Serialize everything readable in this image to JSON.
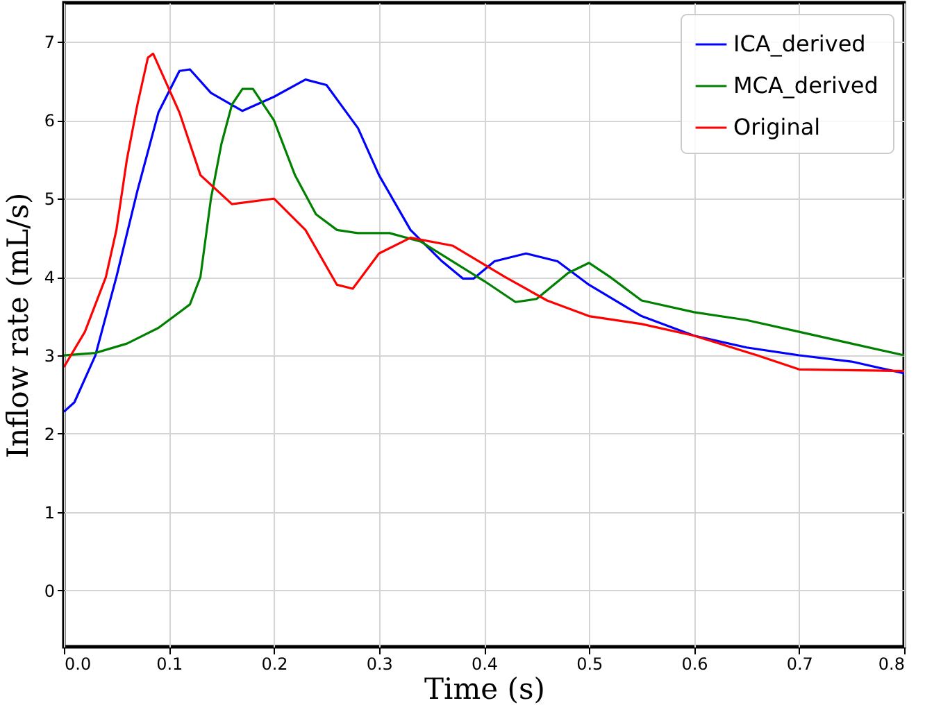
{
  "chart_data": {
    "type": "line",
    "xlabel": "Time (s)",
    "ylabel": "Inflow rate (mL/s)",
    "xlim": [
      0,
      0.8
    ],
    "xticks": [
      {
        "value": 0,
        "label": "0.0"
      },
      0.1,
      0.2,
      0.3,
      0.4,
      0.5,
      0.6,
      0.7,
      0.8
    ],
    "ylim": [
      -0.72,
      7.5
    ],
    "yticks": [
      0,
      1,
      2,
      3,
      4,
      5,
      6,
      7
    ],
    "grid": true,
    "legend": "top right",
    "line_style": "solid",
    "marker": "none",
    "series": [
      {
        "name": "ICA_derived",
        "color": "#0000ff",
        "x": [
          0,
          0.01,
          0.03,
          0.05,
          0.07,
          0.09,
          0.11,
          0.12,
          0.14,
          0.17,
          0.2,
          0.23,
          0.25,
          0.28,
          0.3,
          0.33,
          0.36,
          0.38,
          0.39,
          0.41,
          0.44,
          0.47,
          0.5,
          0.55,
          0.6,
          0.65,
          0.7,
          0.75,
          0.8
        ],
        "values": [
          2.28,
          2.4,
          3.0,
          4.0,
          5.1,
          6.1,
          6.63,
          6.65,
          6.35,
          6.12,
          6.3,
          6.52,
          6.45,
          5.9,
          5.3,
          4.6,
          4.2,
          3.98,
          3.98,
          4.2,
          4.3,
          4.2,
          3.9,
          3.5,
          3.25,
          3.1,
          3.0,
          2.92,
          2.77
        ]
      },
      {
        "name": "MCA_derived",
        "color": "#008000",
        "x": [
          0,
          0.03,
          0.06,
          0.09,
          0.11,
          0.12,
          0.13,
          0.14,
          0.15,
          0.16,
          0.17,
          0.18,
          0.2,
          0.22,
          0.24,
          0.26,
          0.28,
          0.31,
          0.34,
          0.37,
          0.4,
          0.43,
          0.45,
          0.48,
          0.5,
          0.52,
          0.55,
          0.6,
          0.65,
          0.7,
          0.75,
          0.8
        ],
        "values": [
          3.0,
          3.03,
          3.15,
          3.35,
          3.55,
          3.65,
          4.0,
          5.0,
          5.7,
          6.2,
          6.4,
          6.4,
          6.0,
          5.3,
          4.8,
          4.6,
          4.56,
          4.56,
          4.45,
          4.2,
          3.95,
          3.68,
          3.72,
          4.05,
          4.18,
          4.0,
          3.7,
          3.55,
          3.45,
          3.3,
          3.15,
          3.0
        ]
      },
      {
        "name": "Original",
        "color": "#ff0000",
        "x": [
          0,
          0.02,
          0.04,
          0.05,
          0.06,
          0.07,
          0.08,
          0.085,
          0.1,
          0.11,
          0.13,
          0.16,
          0.2,
          0.23,
          0.26,
          0.275,
          0.3,
          0.33,
          0.37,
          0.42,
          0.46,
          0.5,
          0.55,
          0.6,
          0.66,
          0.7,
          0.8
        ],
        "values": [
          2.85,
          3.3,
          4.0,
          4.6,
          5.5,
          6.2,
          6.8,
          6.85,
          6.4,
          6.1,
          5.3,
          4.93,
          5.0,
          4.6,
          3.9,
          3.85,
          4.3,
          4.5,
          4.4,
          4.0,
          3.7,
          3.5,
          3.4,
          3.25,
          3.0,
          2.82,
          2.8
        ]
      }
    ]
  }
}
